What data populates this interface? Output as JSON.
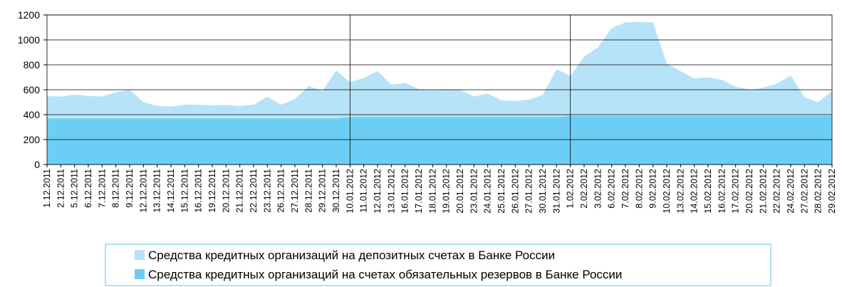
{
  "chart_data": {
    "type": "stacked_area",
    "categories": [
      "1.12.2011",
      "2.12.2011",
      "5.12.2011",
      "6.12.2011",
      "7.12.2011",
      "8.12.2011",
      "9.12.2011",
      "12.12.2011",
      "13.12.2011",
      "14.12.2011",
      "15.12.2011",
      "16.12.2011",
      "19.12.2011",
      "20.12.2011",
      "21.12.2011",
      "22.12.2011",
      "23.12.2011",
      "26.12.2011",
      "27.12.2011",
      "28.12.2011",
      "29.12.2011",
      "30.12.2011",
      "10.01.2012",
      "11.01.2012",
      "12.01.2012",
      "13.01.2012",
      "16.01.2012",
      "17.01.2012",
      "18.01.2012",
      "19.01.2012",
      "20.01.2012",
      "23.01.2012",
      "24.01.2012",
      "25.01.2012",
      "26.01.2012",
      "27.01.2012",
      "30.01.2012",
      "31.01.2012",
      "1.02.2012",
      "2.02.2012",
      "3.02.2012",
      "6.02.2012",
      "7.02.2012",
      "8.02.2012",
      "9.02.2012",
      "10.02.2012",
      "13.02.2012",
      "14.02.2012",
      "15.02.2012",
      "16.02.2012",
      "17.02.2012",
      "20.02.2012",
      "21.02.2012",
      "22.02.2012",
      "24.02.2012",
      "27.02.2012",
      "28.02.2012",
      "29.02.2012"
    ],
    "series": [
      {
        "name": "Средства кредитных организаций на депозитных счетах в Банке России",
        "color": "#b7e3f8",
        "values": [
          180,
          175,
          190,
          180,
          175,
          210,
          230,
          130,
          100,
          95,
          110,
          110,
          105,
          108,
          100,
          110,
          175,
          110,
          155,
          260,
          220,
          385,
          280,
          315,
          370,
          260,
          275,
          225,
          220,
          225,
          220,
          165,
          190,
          135,
          130,
          140,
          180,
          385,
          320,
          475,
          550,
          705,
          750,
          755,
          750,
          420,
          360,
          300,
          310,
          290,
          235,
          210,
          225,
          260,
          325,
          150,
          110,
          200
        ]
      },
      {
        "name": "Средства кредитных организаций на счетах обязательных резервов в Банке России",
        "color": "#6ccef5",
        "values": [
          370,
          370,
          370,
          370,
          370,
          370,
          370,
          370,
          370,
          370,
          370,
          370,
          370,
          370,
          370,
          370,
          370,
          370,
          370,
          370,
          370,
          370,
          380,
          380,
          380,
          380,
          380,
          380,
          380,
          380,
          380,
          380,
          380,
          380,
          380,
          380,
          380,
          380,
          390,
          390,
          390,
          390,
          390,
          390,
          390,
          390,
          390,
          390,
          390,
          390,
          390,
          390,
          390,
          390,
          390,
          390,
          390,
          390
        ]
      }
    ],
    "ylim": [
      0,
      1200
    ],
    "yticks": [
      0,
      200,
      400,
      600,
      800,
      1000,
      1200
    ],
    "grid": true
  }
}
